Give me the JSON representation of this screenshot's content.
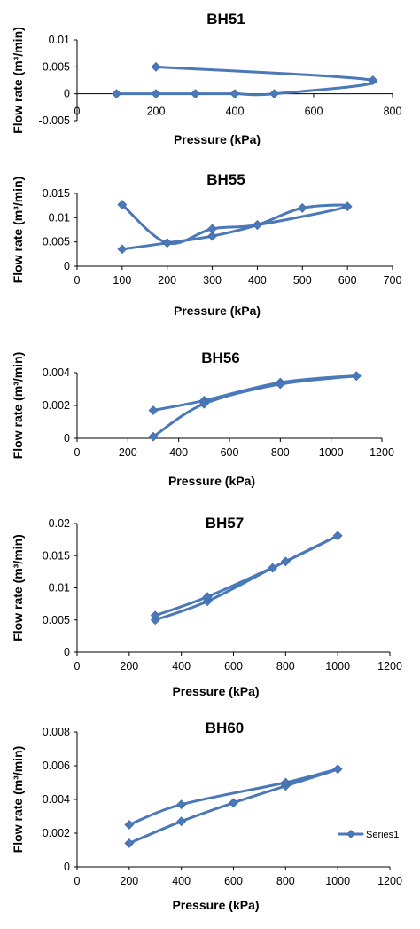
{
  "chart_data": [
    {
      "type": "scatter",
      "title": "BH51",
      "xlabel": "Pressure (kPa)",
      "ylabel": "Flow rate (m³/min)",
      "xlim": [
        0,
        800
      ],
      "ylim": [
        -0.005,
        0.01
      ],
      "xticks": [
        "0",
        "200",
        "400",
        "600",
        "800"
      ],
      "yticks": [
        "-0.005",
        "0",
        "0.005",
        "0.01"
      ],
      "xtick_values": [
        0,
        200,
        400,
        600,
        800
      ],
      "ytick_values": [
        -0.005,
        0,
        0.005,
        0.01
      ],
      "x_axis_at_zero": true,
      "series": [
        {
          "x": [
            200,
            750,
            500,
            400,
            300,
            200,
            100
          ],
          "y": [
            0.005,
            0.0025,
            0.0,
            0.0,
            0.0,
            0.0,
            0.0
          ]
        }
      ]
    },
    {
      "type": "scatter",
      "title": "BH55",
      "xlabel": "Pressure (kPa)",
      "ylabel": "Flow rate (m³/min)",
      "xlim": [
        0,
        700
      ],
      "ylim": [
        0,
        0.015
      ],
      "xticks": [
        "0",
        "100",
        "200",
        "300",
        "400",
        "500",
        "600",
        "700"
      ],
      "yticks": [
        "0",
        "0.005",
        "0.01",
        "0.015"
      ],
      "xtick_values": [
        0,
        100,
        200,
        300,
        400,
        500,
        600,
        700
      ],
      "ytick_values": [
        0,
        0.005,
        0.01,
        0.015
      ],
      "series": [
        {
          "x": [
            100,
            200,
            300,
            400,
            500,
            600,
            400,
            300,
            200,
            100
          ],
          "y": [
            0.0035,
            0.0048,
            0.0062,
            0.0085,
            0.012,
            0.0123,
            0.0085,
            0.0077,
            0.0048,
            0.0127
          ]
        }
      ]
    },
    {
      "type": "scatter",
      "title": "BH56",
      "xlabel": "Pressure (kPa)",
      "ylabel": "Flow rate (m³/min)",
      "xlim": [
        0,
        1200
      ],
      "ylim": [
        0,
        0.004
      ],
      "xticks": [
        "0",
        "200",
        "400",
        "600",
        "800",
        "1000",
        "1200"
      ],
      "yticks": [
        "0",
        "0.002",
        "0.004"
      ],
      "xtick_values": [
        0,
        200,
        400,
        600,
        800,
        1000,
        1200
      ],
      "ytick_values": [
        0,
        0.002,
        0.004
      ],
      "series": [
        {
          "x": [
            300,
            500,
            800,
            1100,
            800,
            500,
            300
          ],
          "y": [
            0.0017,
            0.0023,
            0.0034,
            0.0038,
            0.0033,
            0.0021,
            0.0001
          ]
        }
      ]
    },
    {
      "type": "scatter",
      "title": "BH57",
      "xlabel": "Pressure (kPa)",
      "ylabel": "Flow rate (m³/min)",
      "xlim": [
        0,
        1200
      ],
      "ylim": [
        0,
        0.02
      ],
      "xticks": [
        "0",
        "200",
        "400",
        "600",
        "800",
        "1000",
        "1200"
      ],
      "yticks": [
        "0",
        "0.005",
        "0.01",
        "0.015",
        "0.02"
      ],
      "xtick_values": [
        0,
        200,
        400,
        600,
        800,
        1000,
        1200
      ],
      "ytick_values": [
        0,
        0.005,
        0.01,
        0.015,
        0.02
      ],
      "series": [
        {
          "x": [
            300,
            500,
            750,
            1000,
            800,
            500,
            300
          ],
          "y": [
            0.005,
            0.0079,
            0.0131,
            0.0181,
            0.0141,
            0.0086,
            0.0057
          ]
        }
      ]
    },
    {
      "type": "scatter",
      "title": "BH60",
      "xlabel": "Pressure (kPa)",
      "ylabel": "Flow rate (m³/min)",
      "xlim": [
        0,
        1200
      ],
      "ylim": [
        0,
        0.008
      ],
      "xticks": [
        "0",
        "200",
        "400",
        "600",
        "800",
        "1000",
        "1200"
      ],
      "yticks": [
        "0",
        "0.002",
        "0.004",
        "0.006",
        "0.008"
      ],
      "xtick_values": [
        0,
        200,
        400,
        600,
        800,
        1000,
        1200
      ],
      "ytick_values": [
        0,
        0.002,
        0.004,
        0.006,
        0.008
      ],
      "legend": {
        "entries": [
          "Series1"
        ],
        "placement": "right"
      },
      "series": [
        {
          "name": "Series1",
          "x": [
            200,
            400,
            600,
            800,
            1000,
            800,
            400,
            200
          ],
          "y": [
            0.0014,
            0.0027,
            0.0038,
            0.0048,
            0.0058,
            0.005,
            0.0037,
            0.0025
          ]
        }
      ]
    }
  ],
  "colors": {
    "series": "#4a78b8",
    "axis": "#000000"
  }
}
